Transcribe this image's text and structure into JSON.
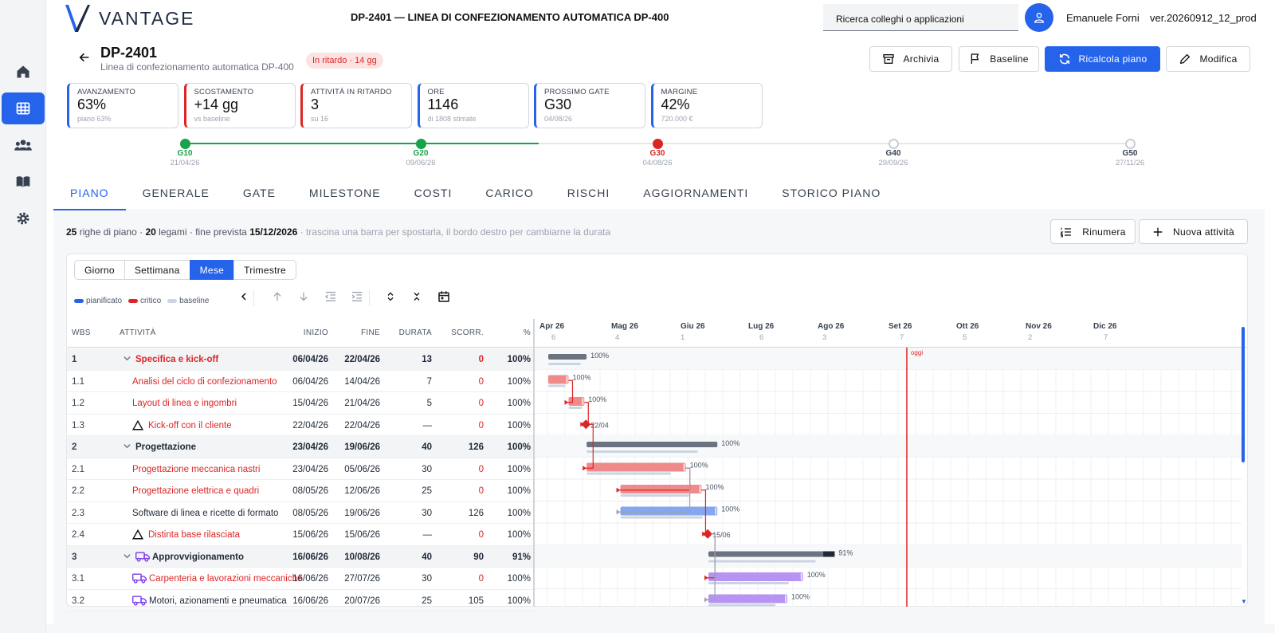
{
  "app": {
    "logo_text": "VANTAGE",
    "title": "DP-2401 — LINEA DI CONFEZIONAMENTO AUTOMATICA DP-400",
    "search_placeholder": "Ricerca colleghi o applicazioni",
    "user_name": "Emanuele Forni",
    "version": "ver.20260912_12_prod"
  },
  "sidebar": {
    "items": [
      {
        "icon": "home-icon",
        "active": false
      },
      {
        "icon": "grid-icon",
        "active": true
      },
      {
        "icon": "people-icon",
        "active": false
      },
      {
        "icon": "book-icon",
        "active": false
      },
      {
        "icon": "gear-icon",
        "active": false
      }
    ]
  },
  "project": {
    "code": "DP-2401",
    "name": "Linea di confezionamento automatica DP-400",
    "status_badge": "In ritardo · 14 gg"
  },
  "actions": {
    "archive": "Archivia",
    "baseline": "Baseline",
    "recalc": "Ricalcola piano",
    "edit": "Modifica"
  },
  "kpis": [
    {
      "label": "AVANZAMENTO",
      "value": "63%",
      "sub": "piano 63%",
      "accent": "#2563eb"
    },
    {
      "label": "SCOSTAMENTO",
      "value": "+14 gg",
      "sub": "vs baseline",
      "accent": "#dc2626"
    },
    {
      "label": "ATTIVITÀ IN RITARDO",
      "value": "3",
      "sub": "su 16",
      "accent": "#dc2626"
    },
    {
      "label": "ORE",
      "value": "1146",
      "sub": "di 1808 stimate",
      "accent": "#2563eb"
    },
    {
      "label": "PROSSIMO GATE",
      "value": "G30",
      "sub": "04/08/26",
      "accent": "#2563eb"
    },
    {
      "label": "MARGINE",
      "value": "42%",
      "sub": "720.000 €",
      "accent": "#2563eb"
    }
  ],
  "gates": [
    {
      "label": "G10",
      "date": "21/04/26",
      "status": "done"
    },
    {
      "label": "G20",
      "date": "09/06/26",
      "status": "done"
    },
    {
      "label": "G30",
      "date": "04/08/26",
      "status": "late"
    },
    {
      "label": "G40",
      "date": "29/09/26",
      "status": "future"
    },
    {
      "label": "G50",
      "date": "27/11/26",
      "status": "future"
    }
  ],
  "tabs": [
    "PIANO",
    "GENERALE",
    "GATE",
    "MILESTONE",
    "COSTI",
    "CARICO",
    "RISCHI",
    "AGGIORNAMENTI",
    "STORICO PIANO"
  ],
  "active_tab": "PIANO",
  "plan_summary": {
    "rows": "25",
    "rows_label": "righe di piano ·",
    "links": "20",
    "links_label": "legami · fine prevista",
    "end": "15/12/2026",
    "hint": "· trascina una barra per spostarla, il bordo destro per cambiarne la durata"
  },
  "plan_actions": {
    "renumber": "Rinumera",
    "new_activity": "Nuova attività"
  },
  "scale": {
    "options": [
      "Giorno",
      "Settimana",
      "Mese",
      "Trimestre"
    ],
    "selected": "Mese"
  },
  "legend": {
    "planned": "pianificato",
    "critical": "critico",
    "baseline": "baseline"
  },
  "columns": {
    "wbs": "WBS",
    "activity": "ATTIVITÀ",
    "start": "INIZIO",
    "end": "FINE",
    "duration": "DURATA",
    "slack": "SCORR.",
    "pct": "%"
  },
  "rows": [
    {
      "wbs": "1",
      "name": "Specifica e kick-off",
      "start": "06/04/26",
      "end": "22/04/26",
      "duration": "13",
      "slack": "0",
      "pct": "100%",
      "type": "summary",
      "critical": true
    },
    {
      "wbs": "1.1",
      "name": "Analisi del ciclo di confezionamento",
      "start": "06/04/26",
      "end": "14/04/26",
      "duration": "7",
      "slack": "0",
      "pct": "100%",
      "type": "task",
      "critical": true
    },
    {
      "wbs": "1.2",
      "name": "Layout di linea e ingombri",
      "start": "15/04/26",
      "end": "21/04/26",
      "duration": "5",
      "slack": "0",
      "pct": "100%",
      "type": "task",
      "critical": true
    },
    {
      "wbs": "1.3",
      "name": "Kick-off con il cliente",
      "start": "22/04/26",
      "end": "22/04/26",
      "duration": "—",
      "slack": "0",
      "pct": "100%",
      "type": "milestone",
      "critical": true
    },
    {
      "wbs": "2",
      "name": "Progettazione",
      "start": "23/04/26",
      "end": "19/06/26",
      "duration": "40",
      "slack": "126",
      "pct": "100%",
      "type": "summary",
      "critical": false
    },
    {
      "wbs": "2.1",
      "name": "Progettazione meccanica nastri",
      "start": "23/04/26",
      "end": "05/06/26",
      "duration": "30",
      "slack": "0",
      "pct": "100%",
      "type": "task",
      "critical": true
    },
    {
      "wbs": "2.2",
      "name": "Progettazione elettrica e quadri",
      "start": "08/05/26",
      "end": "12/06/26",
      "duration": "25",
      "slack": "0",
      "pct": "100%",
      "type": "task",
      "critical": true
    },
    {
      "wbs": "2.3",
      "name": "Software di linea e ricette di formato",
      "start": "08/05/26",
      "end": "19/06/26",
      "duration": "30",
      "slack": "126",
      "pct": "100%",
      "type": "task",
      "critical": false
    },
    {
      "wbs": "2.4",
      "name": "Distinta base rilasciata",
      "start": "15/06/26",
      "end": "15/06/26",
      "duration": "—",
      "slack": "0",
      "pct": "100%",
      "type": "milestone",
      "critical": true
    },
    {
      "wbs": "3",
      "name": "Approvvigionamento",
      "start": "16/06/26",
      "end": "10/08/26",
      "duration": "40",
      "slack": "90",
      "pct": "91%",
      "type": "summary-truck",
      "critical": false
    },
    {
      "wbs": "3.1",
      "name": "Carpenteria e lavorazioni meccaniche",
      "start": "16/06/26",
      "end": "27/07/26",
      "duration": "30",
      "slack": "0",
      "pct": "100%",
      "type": "task-truck",
      "critical": true
    },
    {
      "wbs": "3.2",
      "name": "Motori, azionamenti e pneumatica",
      "start": "16/06/26",
      "end": "20/07/26",
      "duration": "25",
      "slack": "105",
      "pct": "100%",
      "type": "task-truck",
      "critical": false
    }
  ],
  "timeline": {
    "months": [
      {
        "label": "Apr 26",
        "week": "6"
      },
      {
        "label": "Mag 26",
        "week": "4"
      },
      {
        "label": "Giu 26",
        "week": "1"
      },
      {
        "label": "Lug 26",
        "week": "6"
      },
      {
        "label": "Ago 26",
        "week": "3"
      },
      {
        "label": "Set 26",
        "week": "7"
      },
      {
        "label": "Ott 26",
        "week": "5"
      },
      {
        "label": "Nov 26",
        "week": "2"
      },
      {
        "label": "Dic 26",
        "week": "7"
      }
    ],
    "today_label": "oggi",
    "today_date": "2026-09-12",
    "milestone_labels": [
      "22/04",
      "15/06"
    ]
  },
  "colors": {
    "accent": "#2563eb",
    "critical": "#dc2626",
    "critical_bar": "#ef8a8a",
    "planned_bar": "#86a6ef",
    "summary_bar": "#6b7280",
    "procurement_bar": "#b794f4",
    "baseline_bar": "#cbd5e1"
  }
}
